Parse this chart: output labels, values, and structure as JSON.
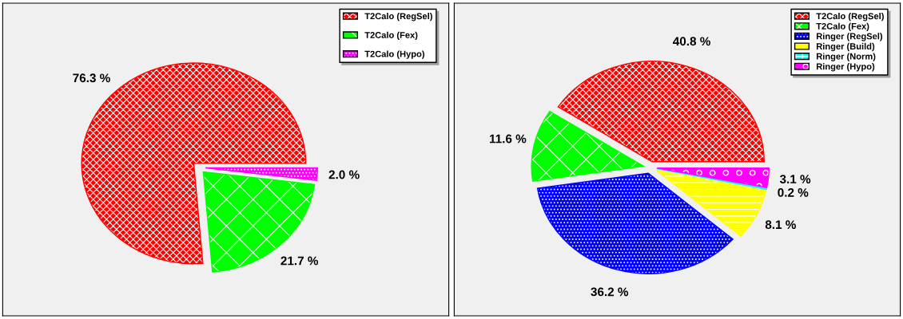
{
  "chart_data": [
    {
      "type": "pie",
      "categories": [
        "T2Calo (RegSel)",
        "T2Calo (Fex)",
        "T2Calo (Hypo)"
      ],
      "values": [
        76.3,
        21.7,
        2.0
      ],
      "colors": [
        "#ff0000",
        "#00ff00",
        "#ff00ff"
      ],
      "value_labels": [
        "76.3 %",
        "21.7 %",
        "2.0 %"
      ],
      "legend": "top right"
    },
    {
      "type": "pie",
      "categories": [
        "T2Calo (RegSel)",
        "T2Calo (Fex)",
        "Ringer (RegSel)",
        "Ringer (Build)",
        "Ringer (Norm)",
        "Ringer (Hypo)"
      ],
      "values": [
        40.8,
        11.6,
        36.2,
        8.1,
        0.2,
        3.1
      ],
      "colors": [
        "#ff0000",
        "#00ff00",
        "#0000ff",
        "#ffff00",
        "#00ffff",
        "#ff00ff"
      ],
      "value_labels": [
        "40.8 %",
        "11.6 %",
        "36.2 %",
        "8.1 %",
        "0.2 %",
        "3.1 %"
      ],
      "legend": "top right"
    }
  ]
}
